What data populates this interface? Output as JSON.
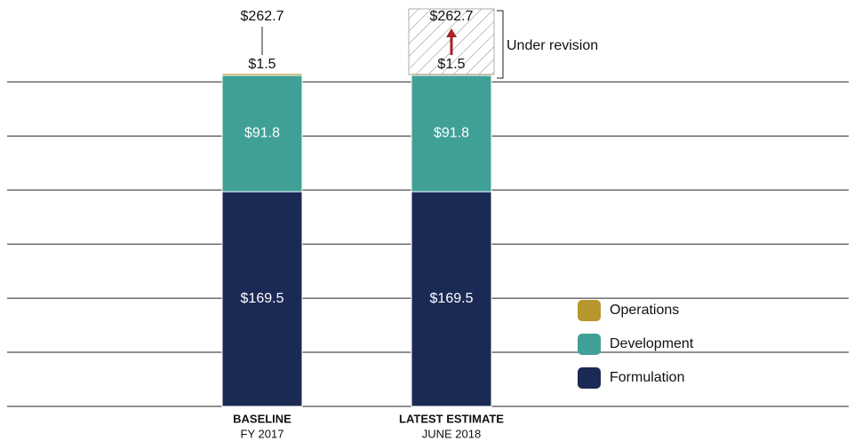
{
  "chart_data": {
    "type": "stacked_bar",
    "categories": [
      "BASELINE",
      "LATEST ESTIMATE"
    ],
    "subcategories": [
      "FY 2017",
      "JUNE 2018"
    ],
    "series": [
      {
        "name": "Formulation",
        "color": "#1b2a55",
        "values": [
          169.5,
          169.5
        ],
        "value_labels": [
          "$169.5",
          "$169.5"
        ]
      },
      {
        "name": "Development",
        "color": "#40a096",
        "values": [
          91.8,
          91.8
        ],
        "value_labels": [
          "$91.8",
          "$91.8"
        ]
      },
      {
        "name": "Operations",
        "color": "#b8962e",
        "values": [
          1.5,
          1.5
        ],
        "value_labels": [
          "$1.5",
          "$1.5"
        ]
      }
    ],
    "totals": [
      262.7,
      262.7
    ],
    "total_labels": [
      "$262.7",
      "$262.7"
    ],
    "annotation": "Under revision",
    "ylim": [
      0,
      265
    ],
    "gridlines": [
      0,
      42.7,
      85.4,
      128.1,
      170.8,
      213.5,
      256.2
    ],
    "grid": true
  }
}
